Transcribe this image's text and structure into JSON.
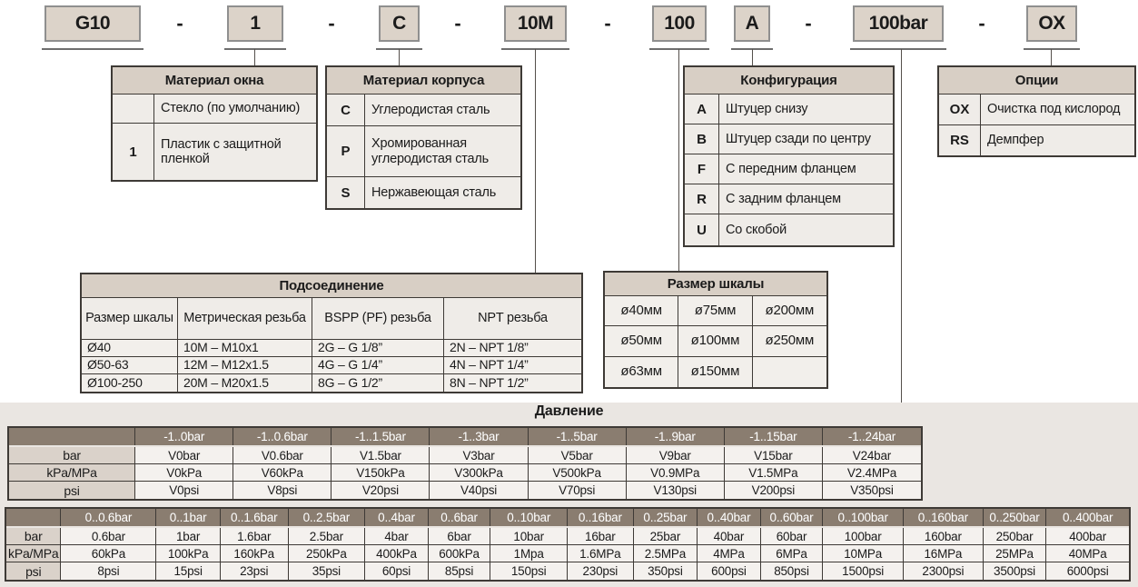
{
  "code_row": {
    "segments": [
      {
        "kind": "box",
        "text": "G10"
      },
      {
        "kind": "dash",
        "text": "-"
      },
      {
        "kind": "box",
        "text": "1"
      },
      {
        "kind": "dash",
        "text": "-"
      },
      {
        "kind": "box",
        "text": "C"
      },
      {
        "kind": "dash",
        "text": "-"
      },
      {
        "kind": "box",
        "text": "10M"
      },
      {
        "kind": "dash",
        "text": "-"
      },
      {
        "kind": "box",
        "text": "100"
      },
      {
        "kind": "box",
        "text": "A"
      },
      {
        "kind": "dash",
        "text": "-"
      },
      {
        "kind": "box",
        "text": "100bar"
      },
      {
        "kind": "dash",
        "text": "-"
      },
      {
        "kind": "box",
        "text": "OX"
      }
    ]
  },
  "tables": {
    "window_material": {
      "title": "Материал окна",
      "rows": [
        {
          "code": "",
          "desc": "Стекло (по умолчанию)"
        },
        {
          "code": "1",
          "desc": "Пластик с защитной пленкой"
        }
      ]
    },
    "case_material": {
      "title": "Материал корпуса",
      "rows": [
        {
          "code": "C",
          "desc": "Углеродистая сталь"
        },
        {
          "code": "P",
          "desc": "Хромированная углеродистая сталь"
        },
        {
          "code": "S",
          "desc": "Нержавеющая сталь"
        }
      ]
    },
    "configuration": {
      "title": "Конфигурация",
      "rows": [
        {
          "code": "A",
          "desc": "Штуцер снизу"
        },
        {
          "code": "B",
          "desc": "Штуцер сзади по центру"
        },
        {
          "code": "F",
          "desc": "С передним фланцем"
        },
        {
          "code": "R",
          "desc": "С задним фланцем"
        },
        {
          "code": "U",
          "desc": "Со скобой"
        }
      ]
    },
    "options": {
      "title": "Опции",
      "rows": [
        {
          "code": "OX",
          "desc": "Очистка под кислород"
        },
        {
          "code": "RS",
          "desc": "Демпфер"
        }
      ]
    },
    "connection": {
      "title": "Подсоединение",
      "columns": [
        "Размер шкалы",
        "Метрическая резьба",
        "BSPP (PF) резьба",
        "NPT резьба"
      ],
      "rows": [
        [
          "Ø40",
          "10M – M10x1",
          "2G – G 1/8”",
          "2N – NPT 1/8”"
        ],
        [
          "Ø50-63",
          "12M – M12x1.5",
          "4G – G 1/4”",
          "4N – NPT 1/4”"
        ],
        [
          "Ø100-250",
          "20M – M20x1.5",
          "8G – G 1/2”",
          "8N – NPT 1/2”"
        ]
      ]
    },
    "dial_size": {
      "title": "Размер шкалы",
      "rows": [
        [
          "ø40мм",
          "ø75мм",
          "ø200мм"
        ],
        [
          "ø50мм",
          "ø100мм",
          "ø250мм"
        ],
        [
          "ø63мм",
          "ø150мм",
          ""
        ]
      ]
    }
  },
  "pressure": {
    "title": "Давление",
    "vacuum_table": {
      "range_headers": [
        "-1..0bar",
        "-1..0.6bar",
        "-1..1.5bar",
        "-1..3bar",
        "-1..5bar",
        "-1..9bar",
        "-1..15bar",
        "-1..24bar"
      ],
      "unit_rows": [
        {
          "unit": "bar",
          "values": [
            "V0bar",
            "V0.6bar",
            "V1.5bar",
            "V3bar",
            "V5bar",
            "V9bar",
            "V15bar",
            "V24bar"
          ]
        },
        {
          "unit": "kPa/MPa",
          "values": [
            "V0kPa",
            "V60kPa",
            "V150kPa",
            "V300kPa",
            "V500kPa",
            "V0.9MPa",
            "V1.5MPa",
            "V2.4MPa"
          ]
        },
        {
          "unit": "psi",
          "values": [
            "V0psi",
            "V8psi",
            "V20psi",
            "V40psi",
            "V70psi",
            "V130psi",
            "V200psi",
            "V350psi"
          ]
        }
      ]
    },
    "positive_table": {
      "range_headers": [
        "0..0.6bar",
        "0..1bar",
        "0..1.6bar",
        "0..2.5bar",
        "0..4bar",
        "0..6bar",
        "0..10bar",
        "0..16bar",
        "0..25bar",
        "0..40bar",
        "0..60bar",
        "0..100bar",
        "0..160bar",
        "0..250bar",
        "0..400bar"
      ],
      "unit_rows": [
        {
          "unit": "bar",
          "values": [
            "0.6bar",
            "1bar",
            "1.6bar",
            "2.5bar",
            "4bar",
            "6bar",
            "10bar",
            "16bar",
            "25bar",
            "40bar",
            "60bar",
            "100bar",
            "160bar",
            "250bar",
            "400bar"
          ]
        },
        {
          "unit": "kPa/MPa",
          "values": [
            "60kPa",
            "100kPa",
            "160kPa",
            "250kPa",
            "400kPa",
            "600kPa",
            "1Mpa",
            "1.6MPa",
            "2.5MPa",
            "4MPa",
            "6MPa",
            "10MPa",
            "16MPa",
            "25MPa",
            "40MPa"
          ]
        },
        {
          "unit": "psi",
          "values": [
            "8psi",
            "15psi",
            "23psi",
            "35psi",
            "60psi",
            "85psi",
            "150psi",
            "230psi",
            "350psi",
            "600psi",
            "850psi",
            "1500psi",
            "2300psi",
            "3500psi",
            "6000psi"
          ]
        }
      ]
    }
  },
  "colors": {
    "box_fill": "#DCD3C9",
    "table_header_fill": "#D8CFC5",
    "dark_header_fill": "#8A7D70",
    "unit_label_fill": "#DAD2CA",
    "strip_bg": "#EAE6E2",
    "border": "#3E3A36"
  }
}
